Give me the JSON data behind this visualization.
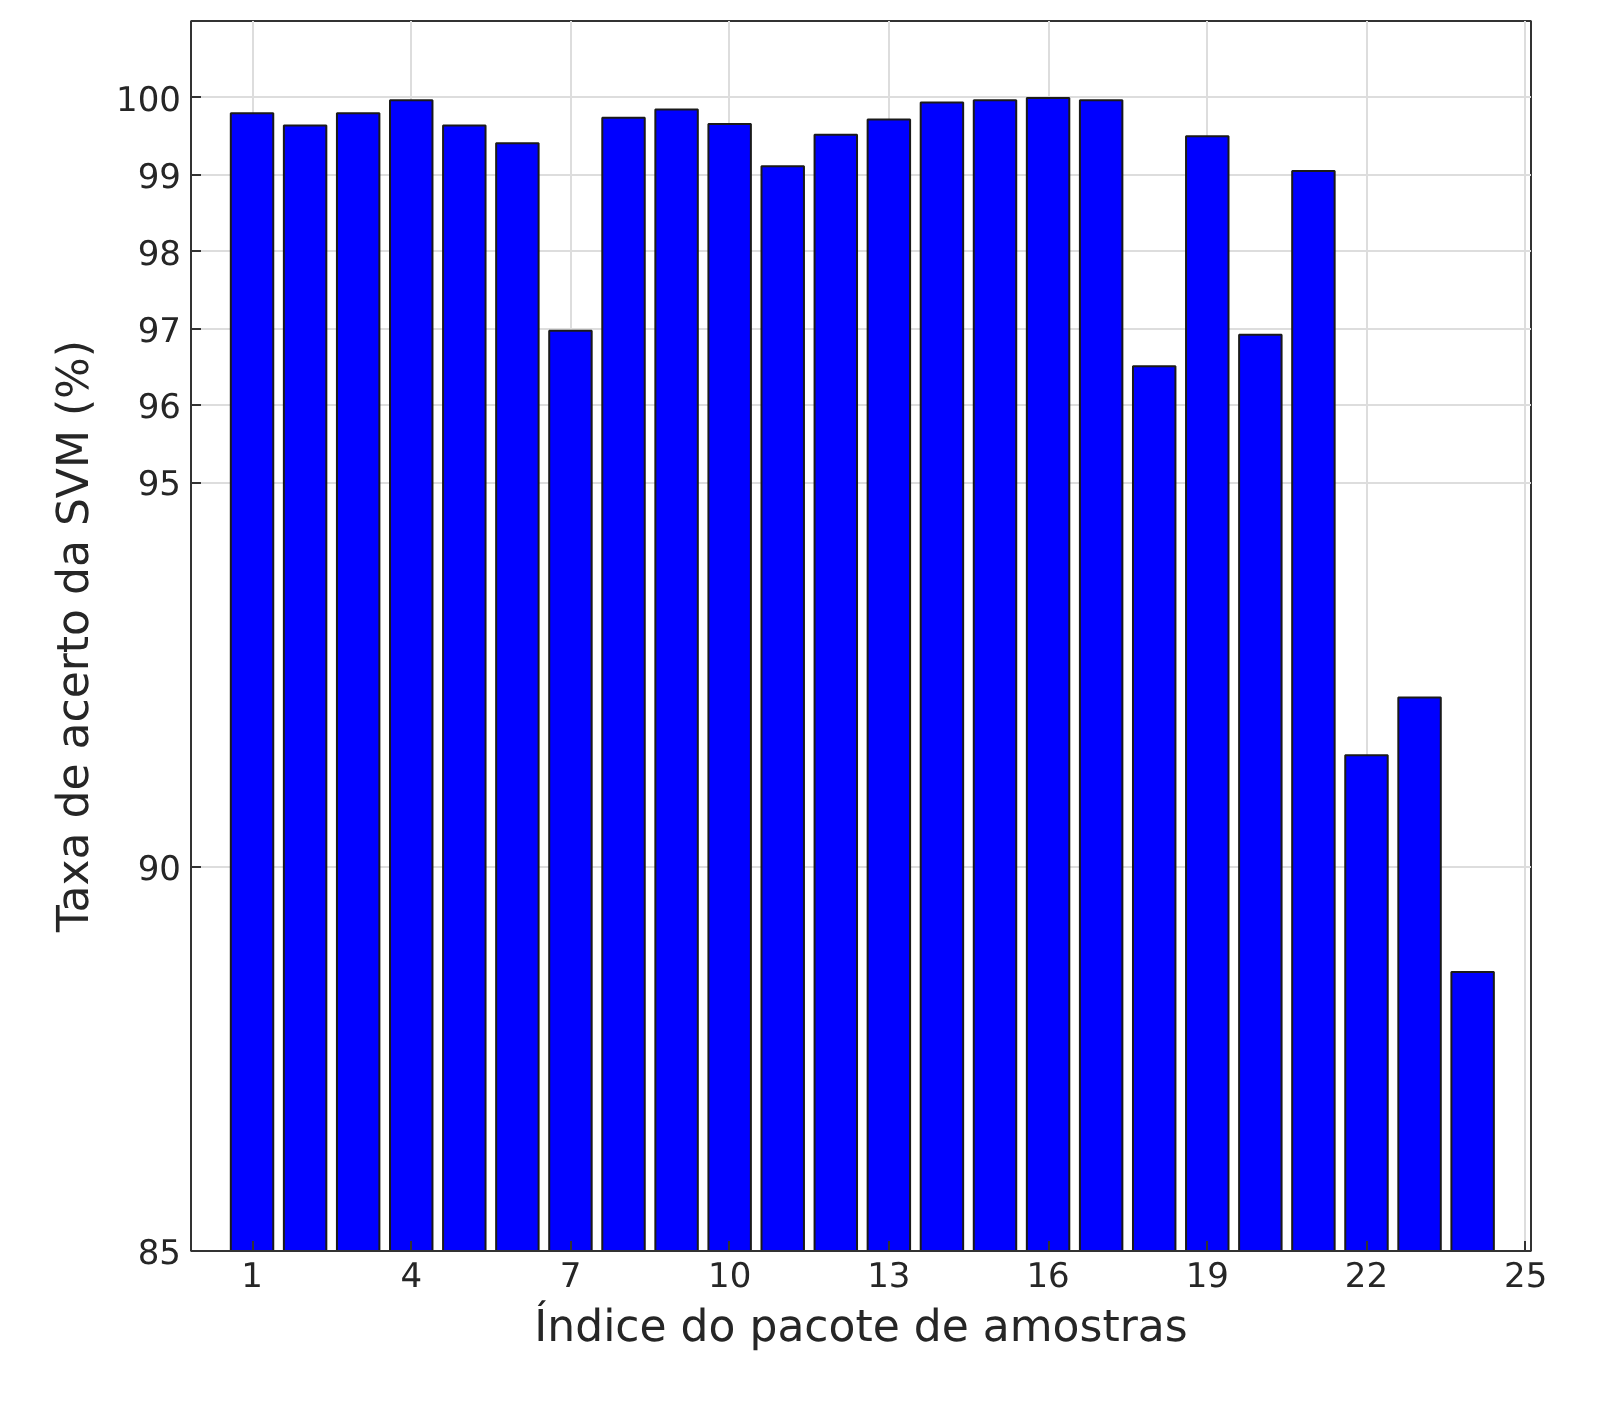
{
  "chart_data": {
    "type": "bar",
    "xlabel": "Índice do pacote de amostras",
    "ylabel": "Taxa de acerto da SVM (%)",
    "x": [
      1,
      2,
      3,
      4,
      5,
      6,
      7,
      8,
      9,
      10,
      11,
      12,
      13,
      14,
      15,
      16,
      17,
      18,
      19,
      20,
      21,
      22,
      23,
      24
    ],
    "values": [
      99.8,
      99.64,
      99.8,
      99.97,
      99.64,
      99.41,
      96.97,
      99.74,
      99.85,
      99.66,
      99.11,
      99.52,
      99.72,
      99.94,
      99.97,
      100.0,
      99.97,
      96.51,
      99.5,
      96.92,
      99.05,
      91.45,
      92.2,
      88.63
    ],
    "color": "#0000ff",
    "xlim": [
      -0.15,
      25.1
    ],
    "xticks": [
      1,
      4,
      7,
      10,
      13,
      16,
      19,
      22,
      25
    ],
    "ylim": [
      85,
      101
    ],
    "yticks": [
      85,
      90,
      95,
      96,
      97,
      98,
      99,
      100
    ],
    "grid": true
  }
}
